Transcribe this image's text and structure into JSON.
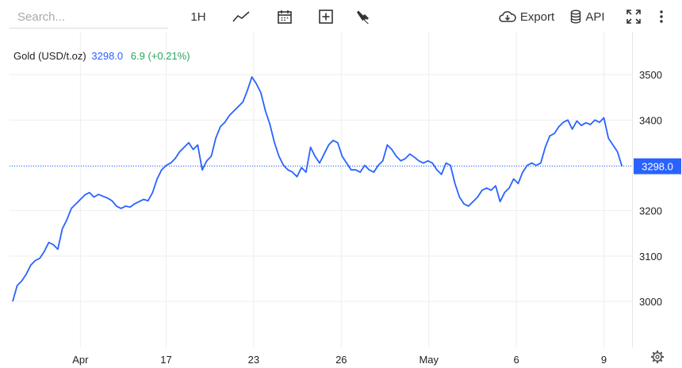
{
  "toolbar": {
    "search": {
      "placeholder": "Search..."
    },
    "interval_label": "1H",
    "export_label": "Export",
    "api_label": "API",
    "icons": [
      "line-chart-icon",
      "calendar-icon",
      "add-indicator-icon",
      "settings-wrench-icon",
      "cloud-download-icon",
      "database-icon",
      "fullscreen-icon",
      "more-vert-icon"
    ]
  },
  "legend": {
    "symbol": "Gold (USD/t.oz)",
    "price": "3298.0",
    "change": "6.9 (+0.21%)"
  },
  "colors": {
    "series": "#2962ff",
    "change_positive": "#26a65b",
    "grid": "#eeeeee"
  },
  "chart_data": {
    "type": "line",
    "title": "",
    "xlabel": "",
    "ylabel": "",
    "ylim": [
      2900,
      3550
    ],
    "y_ticks": [
      3000,
      3100,
      3200,
      3300,
      3400,
      3500
    ],
    "x_ticks": [
      {
        "label": "Apr",
        "x": 7.5
      },
      {
        "label": "17",
        "x": 17
      },
      {
        "label": "23",
        "x": 26.7
      },
      {
        "label": "26",
        "x": 36.4
      },
      {
        "label": "May",
        "x": 46.1
      },
      {
        "label": "6",
        "x": 55.8
      },
      {
        "label": "9",
        "x": 65.5
      }
    ],
    "xlim": [
      0,
      68
    ],
    "last_value": 3298.0,
    "last_label": "3298.0",
    "grid": true,
    "series": [
      {
        "values": [
          [
            0.0,
            3000
          ],
          [
            0.5,
            3035
          ],
          [
            1.0,
            3045
          ],
          [
            1.5,
            3060
          ],
          [
            2.0,
            3080
          ],
          [
            2.5,
            3090
          ],
          [
            3.0,
            3095
          ],
          [
            3.5,
            3110
          ],
          [
            4.0,
            3130
          ],
          [
            4.5,
            3125
          ],
          [
            5.0,
            3115
          ],
          [
            5.5,
            3160
          ],
          [
            6.0,
            3180
          ],
          [
            6.5,
            3205
          ],
          [
            7.0,
            3215
          ],
          [
            7.5,
            3225
          ],
          [
            8.0,
            3235
          ],
          [
            8.5,
            3240
          ],
          [
            9.0,
            3230
          ],
          [
            9.5,
            3236
          ],
          [
            10.0,
            3232
          ],
          [
            10.5,
            3228
          ],
          [
            11.0,
            3222
          ],
          [
            11.5,
            3210
          ],
          [
            12.0,
            3205
          ],
          [
            12.5,
            3210
          ],
          [
            13.0,
            3208
          ],
          [
            13.5,
            3215
          ],
          [
            14.0,
            3220
          ],
          [
            14.5,
            3225
          ],
          [
            15.0,
            3222
          ],
          [
            15.5,
            3240
          ],
          [
            16.0,
            3270
          ],
          [
            16.5,
            3290
          ],
          [
            17.0,
            3300
          ],
          [
            17.5,
            3305
          ],
          [
            18.0,
            3315
          ],
          [
            18.5,
            3330
          ],
          [
            19.0,
            3340
          ],
          [
            19.5,
            3350
          ],
          [
            20.0,
            3335
          ],
          [
            20.5,
            3345
          ],
          [
            21.0,
            3290
          ],
          [
            21.5,
            3310
          ],
          [
            22.0,
            3320
          ],
          [
            22.5,
            3360
          ],
          [
            23.0,
            3385
          ],
          [
            23.5,
            3395
          ],
          [
            24.0,
            3410
          ],
          [
            24.5,
            3420
          ],
          [
            25.0,
            3430
          ],
          [
            25.5,
            3440
          ],
          [
            26.0,
            3465
          ],
          [
            26.5,
            3495
          ],
          [
            27.0,
            3480
          ],
          [
            27.5,
            3460
          ],
          [
            28.0,
            3420
          ],
          [
            28.5,
            3390
          ],
          [
            29.0,
            3350
          ],
          [
            29.5,
            3320
          ],
          [
            30.0,
            3300
          ],
          [
            30.5,
            3290
          ],
          [
            31.0,
            3285
          ],
          [
            31.5,
            3275
          ],
          [
            32.0,
            3295
          ],
          [
            32.5,
            3285
          ],
          [
            33.0,
            3340
          ],
          [
            33.5,
            3320
          ],
          [
            34.0,
            3305
          ],
          [
            34.5,
            3325
          ],
          [
            35.0,
            3345
          ],
          [
            35.5,
            3355
          ],
          [
            36.0,
            3350
          ],
          [
            36.5,
            3320
          ],
          [
            37.0,
            3305
          ],
          [
            37.5,
            3290
          ],
          [
            38.0,
            3290
          ],
          [
            38.5,
            3285
          ],
          [
            39.0,
            3300
          ],
          [
            39.5,
            3290
          ],
          [
            40.0,
            3285
          ],
          [
            40.5,
            3300
          ],
          [
            41.0,
            3310
          ],
          [
            41.5,
            3345
          ],
          [
            42.0,
            3335
          ],
          [
            42.5,
            3320
          ],
          [
            43.0,
            3310
          ],
          [
            43.5,
            3315
          ],
          [
            44.0,
            3325
          ],
          [
            44.5,
            3318
          ],
          [
            45.0,
            3310
          ],
          [
            45.5,
            3305
          ],
          [
            46.0,
            3310
          ],
          [
            46.5,
            3305
          ],
          [
            47.0,
            3290
          ],
          [
            47.5,
            3280
          ],
          [
            48.0,
            3305
          ],
          [
            48.5,
            3300
          ],
          [
            49.0,
            3260
          ],
          [
            49.5,
            3230
          ],
          [
            50.0,
            3215
          ],
          [
            50.5,
            3210
          ],
          [
            51.0,
            3220
          ],
          [
            51.5,
            3230
          ],
          [
            52.0,
            3245
          ],
          [
            52.5,
            3250
          ],
          [
            53.0,
            3245
          ],
          [
            53.5,
            3255
          ],
          [
            54.0,
            3220
          ],
          [
            54.5,
            3240
          ],
          [
            55.0,
            3250
          ],
          [
            55.5,
            3270
          ],
          [
            56.0,
            3260
          ],
          [
            56.5,
            3285
          ],
          [
            57.0,
            3300
          ],
          [
            57.5,
            3305
          ],
          [
            58.0,
            3300
          ],
          [
            58.5,
            3305
          ],
          [
            59.0,
            3340
          ],
          [
            59.5,
            3365
          ],
          [
            60.0,
            3370
          ],
          [
            60.5,
            3385
          ],
          [
            61.0,
            3395
          ],
          [
            61.5,
            3400
          ],
          [
            62.0,
            3380
          ],
          [
            62.5,
            3398
          ],
          [
            63.0,
            3388
          ],
          [
            63.5,
            3394
          ],
          [
            64.0,
            3390
          ],
          [
            64.5,
            3400
          ],
          [
            65.0,
            3395
          ],
          [
            65.5,
            3405
          ],
          [
            66.0,
            3360
          ],
          [
            66.5,
            3345
          ],
          [
            67.0,
            3330
          ],
          [
            67.5,
            3298
          ]
        ]
      }
    ]
  }
}
